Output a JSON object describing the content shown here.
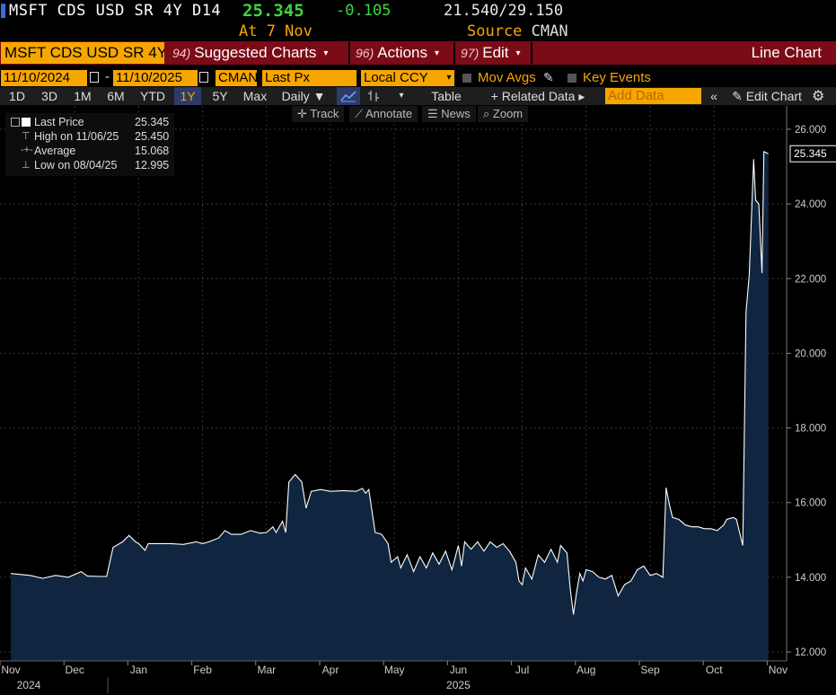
{
  "header": {
    "ticker": "MSFT CDS USD SR 4Y D14",
    "last": "25.345",
    "change": "-0.105",
    "range": "21.540/29.150",
    "as_of": "At 7 Nov",
    "source_label": "Source",
    "source_value": "CMAN"
  },
  "menubar": {
    "security": "MSFT CDS USD SR 4Y D14",
    "suggested_num": "94)",
    "suggested": "Suggested Charts",
    "actions_num": "96)",
    "actions": "Actions",
    "edit_num": "97)",
    "edit": "Edit",
    "title": "Line Chart"
  },
  "controls": {
    "start_date": "11/10/2024",
    "dash": "-",
    "end_date": "11/10/2025",
    "source": "CMAN",
    "field": "Last Px",
    "currency": "Local CCY",
    "mov_avgs": "Mov Avgs",
    "key_events": "Key Events",
    "periods": [
      "1D",
      "3D",
      "1M",
      "6M",
      "YTD",
      "1Y",
      "5Y",
      "Max"
    ],
    "frequency": "Daily ▼",
    "table": "Table",
    "related": "+ Related Data ▸",
    "add_data_placeholder": "Add Data",
    "edit_chart": "Edit Chart"
  },
  "tools": [
    "Track",
    "Annotate",
    "News",
    "Zoom"
  ],
  "legend": [
    {
      "label": "Last Price",
      "value": "25.345"
    },
    {
      "label": "High on 11/06/25",
      "value": "25.450"
    },
    {
      "label": "Average",
      "value": "15.068"
    },
    {
      "label": "Low on 08/04/25",
      "value": "12.995"
    }
  ],
  "colors": {
    "accent_orange": "#f7a600",
    "menu_red": "#7a0b17",
    "positive_green": "#3bd83b",
    "area_fill": "#0f2540",
    "line": "#ffffff"
  },
  "chart_data": {
    "type": "area",
    "y_ticks": [
      "26.000",
      "24.000",
      "22.000",
      "20.000",
      "18.000",
      "16.000",
      "14.000",
      "12.000"
    ],
    "ylim": [
      11.6,
      26.4
    ],
    "x_month_labels": [
      "Nov",
      "Dec",
      "Jan",
      "Feb",
      "Mar",
      "Apr",
      "May",
      "Jun",
      "Jul",
      "Aug",
      "Sep",
      "Oct",
      "Nov"
    ],
    "x_year_labels": [
      {
        "label": "2024",
        "month_index": 0
      },
      {
        "label": "2025",
        "month_index": 7
      }
    ],
    "last_value_label": "25.345",
    "series": [
      {
        "name": "Last Price",
        "points": [
          [
            0.0,
            14.1
          ],
          [
            0.3,
            14.05
          ],
          [
            0.5,
            13.97
          ],
          [
            0.7,
            14.05
          ],
          [
            0.9,
            14.0
          ],
          [
            1.1,
            14.15
          ],
          [
            1.2,
            14.03
          ],
          [
            1.4,
            14.02
          ],
          [
            1.5,
            14.02
          ],
          [
            1.6,
            14.8
          ],
          [
            1.75,
            14.95
          ],
          [
            1.85,
            15.12
          ],
          [
            1.95,
            14.95
          ],
          [
            2.0,
            14.9
          ],
          [
            2.1,
            14.72
          ],
          [
            2.15,
            14.9
          ],
          [
            2.3,
            14.9
          ],
          [
            2.5,
            14.9
          ],
          [
            2.7,
            14.88
          ],
          [
            2.9,
            14.95
          ],
          [
            3.0,
            14.9
          ],
          [
            3.1,
            14.95
          ],
          [
            3.25,
            15.05
          ],
          [
            3.35,
            15.25
          ],
          [
            3.45,
            15.15
          ],
          [
            3.6,
            15.15
          ],
          [
            3.75,
            15.25
          ],
          [
            3.9,
            15.18
          ],
          [
            4.0,
            15.2
          ],
          [
            4.1,
            15.35
          ],
          [
            4.15,
            15.2
          ],
          [
            4.25,
            15.5
          ],
          [
            4.3,
            15.2
          ],
          [
            4.35,
            16.55
          ],
          [
            4.45,
            16.75
          ],
          [
            4.55,
            16.55
          ],
          [
            4.62,
            15.85
          ],
          [
            4.7,
            16.3
          ],
          [
            4.85,
            16.35
          ],
          [
            5.0,
            16.3
          ],
          [
            5.2,
            16.32
          ],
          [
            5.4,
            16.3
          ],
          [
            5.5,
            16.38
          ],
          [
            5.55,
            16.25
          ],
          [
            5.6,
            16.35
          ],
          [
            5.7,
            15.2
          ],
          [
            5.8,
            15.15
          ],
          [
            5.9,
            14.9
          ],
          [
            5.95,
            14.4
          ],
          [
            6.05,
            14.55
          ],
          [
            6.1,
            14.25
          ],
          [
            6.2,
            14.6
          ],
          [
            6.3,
            14.15
          ],
          [
            6.4,
            14.55
          ],
          [
            6.5,
            14.25
          ],
          [
            6.6,
            14.65
          ],
          [
            6.7,
            14.35
          ],
          [
            6.8,
            14.7
          ],
          [
            6.9,
            14.2
          ],
          [
            7.0,
            14.85
          ],
          [
            7.05,
            14.3
          ],
          [
            7.1,
            14.95
          ],
          [
            7.2,
            14.75
          ],
          [
            7.3,
            14.95
          ],
          [
            7.4,
            14.7
          ],
          [
            7.5,
            14.95
          ],
          [
            7.6,
            14.8
          ],
          [
            7.7,
            14.9
          ],
          [
            7.8,
            14.7
          ],
          [
            7.9,
            14.4
          ],
          [
            7.95,
            13.9
          ],
          [
            8.0,
            13.8
          ],
          [
            8.05,
            14.25
          ],
          [
            8.15,
            13.95
          ],
          [
            8.25,
            14.6
          ],
          [
            8.35,
            14.4
          ],
          [
            8.45,
            14.75
          ],
          [
            8.55,
            14.4
          ],
          [
            8.6,
            14.85
          ],
          [
            8.7,
            14.65
          ],
          [
            8.75,
            13.7
          ],
          [
            8.8,
            13.0
          ],
          [
            8.85,
            13.6
          ],
          [
            8.9,
            14.1
          ],
          [
            8.95,
            13.9
          ],
          [
            9.0,
            14.2
          ],
          [
            9.1,
            14.15
          ],
          [
            9.2,
            14.0
          ],
          [
            9.3,
            13.95
          ],
          [
            9.4,
            14.05
          ],
          [
            9.5,
            13.5
          ],
          [
            9.6,
            13.8
          ],
          [
            9.7,
            13.9
          ],
          [
            9.8,
            14.2
          ],
          [
            9.9,
            14.3
          ],
          [
            10.0,
            14.05
          ],
          [
            10.1,
            14.1
          ],
          [
            10.2,
            14.0
          ],
          [
            10.25,
            16.4
          ],
          [
            10.3,
            15.95
          ],
          [
            10.35,
            15.6
          ],
          [
            10.45,
            15.55
          ],
          [
            10.55,
            15.4
          ],
          [
            10.65,
            15.35
          ],
          [
            10.75,
            15.35
          ],
          [
            10.85,
            15.3
          ],
          [
            10.95,
            15.3
          ],
          [
            11.05,
            15.25
          ],
          [
            11.15,
            15.4
          ],
          [
            11.2,
            15.55
          ],
          [
            11.3,
            15.6
          ],
          [
            11.35,
            15.55
          ],
          [
            11.45,
            14.85
          ],
          [
            11.5,
            21.1
          ],
          [
            11.55,
            22.1
          ],
          [
            11.62,
            25.2
          ],
          [
            11.65,
            24.1
          ],
          [
            11.7,
            24.0
          ],
          [
            11.75,
            22.15
          ],
          [
            11.78,
            25.4
          ],
          [
            11.85,
            25.345
          ]
        ]
      }
    ]
  }
}
